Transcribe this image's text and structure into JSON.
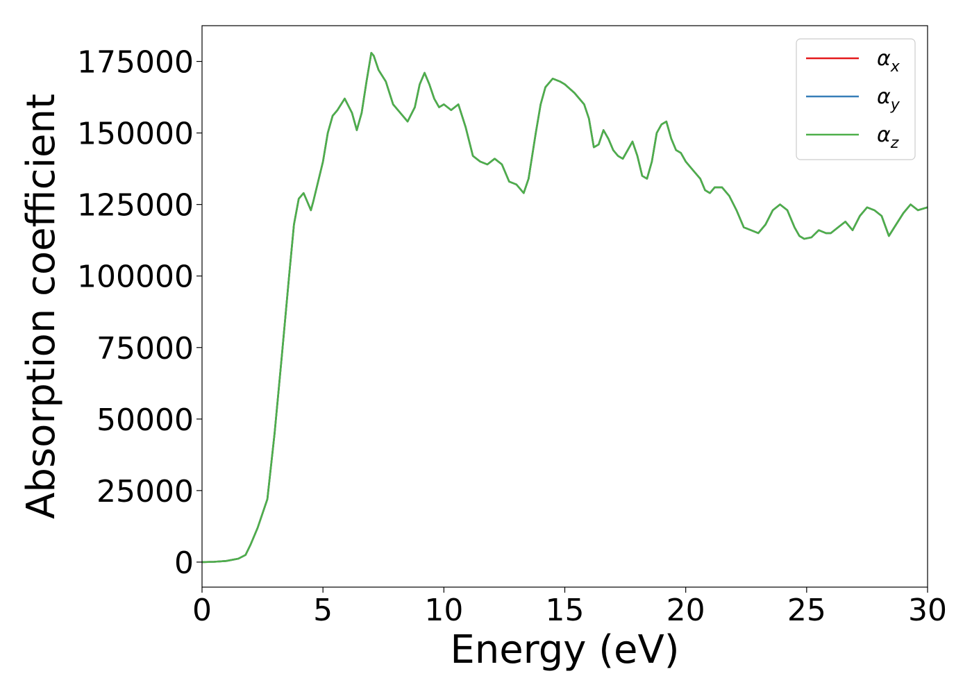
{
  "chart_data": {
    "type": "line",
    "xlabel": "Energy (eV)",
    "ylabel": "Absorption coefficient",
    "xlim": [
      0,
      30
    ],
    "ylim": [
      -8750,
      187500
    ],
    "xticks": [
      0,
      5,
      10,
      15,
      20,
      25,
      30
    ],
    "xtick_labels": [
      "0",
      "5",
      "10",
      "15",
      "20",
      "25",
      "30"
    ],
    "yticks": [
      0,
      25000,
      50000,
      75000,
      100000,
      125000,
      150000,
      175000
    ],
    "ytick_labels": [
      "0",
      "25000",
      "50000",
      "75000",
      "100000",
      "125000",
      "150000",
      "175000"
    ],
    "grid": false,
    "legend_position": "top-right",
    "x": [
      0,
      0.5,
      1.0,
      1.5,
      1.8,
      2.0,
      2.3,
      2.7,
      3.0,
      3.3,
      3.6,
      3.8,
      4.0,
      4.2,
      4.3,
      4.5,
      4.6,
      4.8,
      5.0,
      5.2,
      5.4,
      5.6,
      5.9,
      6.2,
      6.4,
      6.6,
      6.8,
      7.0,
      7.1,
      7.3,
      7.6,
      7.9,
      8.2,
      8.5,
      8.8,
      9.0,
      9.2,
      9.4,
      9.6,
      9.8,
      10.0,
      10.3,
      10.6,
      10.9,
      11.2,
      11.5,
      11.8,
      12.1,
      12.4,
      12.7,
      13.0,
      13.3,
      13.5,
      13.8,
      14.0,
      14.2,
      14.5,
      14.8,
      15.0,
      15.4,
      15.8,
      16.0,
      16.2,
      16.4,
      16.6,
      16.8,
      17.0,
      17.2,
      17.4,
      17.6,
      17.8,
      18.0,
      18.2,
      18.4,
      18.6,
      18.8,
      19.0,
      19.2,
      19.4,
      19.6,
      19.8,
      20.0,
      20.2,
      20.4,
      20.6,
      20.8,
      21.0,
      21.2,
      21.5,
      21.8,
      22.1,
      22.4,
      22.7,
      23.0,
      23.3,
      23.6,
      23.9,
      24.2,
      24.5,
      24.7,
      24.9,
      25.2,
      25.5,
      25.8,
      26.0,
      26.3,
      26.6,
      26.9,
      27.2,
      27.5,
      27.8,
      28.1,
      28.4,
      28.7,
      29.0,
      29.3,
      29.6,
      30.0
    ],
    "series": [
      {
        "name": "α_x",
        "color": "#e41a1c",
        "y": [
          0,
          100,
          400,
          1200,
          2500,
          6000,
          12000,
          22000,
          45000,
          72000,
          100000,
          118000,
          127000,
          129000,
          127000,
          123000,
          126000,
          133000,
          140000,
          150000,
          156000,
          158000,
          162000,
          157000,
          151000,
          157000,
          168000,
          178000,
          177000,
          172000,
          168000,
          160000,
          157000,
          154000,
          159000,
          167000,
          171000,
          167000,
          162000,
          159000,
          160000,
          158000,
          160000,
          152000,
          142000,
          140000,
          139000,
          141000,
          139000,
          133000,
          132000,
          129000,
          134000,
          150000,
          160000,
          166000,
          169000,
          168000,
          167000,
          164000,
          160000,
          155000,
          145000,
          146000,
          151000,
          148000,
          144000,
          142000,
          141000,
          144000,
          147000,
          142000,
          135000,
          134000,
          140000,
          150000,
          153000,
          154000,
          148000,
          144000,
          143000,
          140000,
          138000,
          136000,
          134000,
          130000,
          129000,
          131000,
          131000,
          128000,
          123000,
          117000,
          116000,
          115000,
          118000,
          123000,
          125000,
          123000,
          117000,
          114000,
          113000,
          113500,
          116000,
          115000,
          115000,
          117000,
          119000,
          116000,
          121000,
          124000,
          123000,
          121000,
          114000,
          118000,
          122000,
          125000,
          123000,
          124000
        ]
      },
      {
        "name": "α_y",
        "color": "#377eb8",
        "y": [
          0,
          100,
          400,
          1200,
          2500,
          6000,
          12000,
          22000,
          45000,
          72000,
          100000,
          118000,
          127000,
          129000,
          127000,
          123000,
          126000,
          133000,
          140000,
          150000,
          156000,
          158000,
          162000,
          157000,
          151000,
          157000,
          168000,
          178000,
          177000,
          172000,
          168000,
          160000,
          157000,
          154000,
          159000,
          167000,
          171000,
          167000,
          162000,
          159000,
          160000,
          158000,
          160000,
          152000,
          142000,
          140000,
          139000,
          141000,
          139000,
          133000,
          132000,
          129000,
          134000,
          150000,
          160000,
          166000,
          169000,
          168000,
          167000,
          164000,
          160000,
          155000,
          145000,
          146000,
          151000,
          148000,
          144000,
          142000,
          141000,
          144000,
          147000,
          142000,
          135000,
          134000,
          140000,
          150000,
          153000,
          154000,
          148000,
          144000,
          143000,
          140000,
          138000,
          136000,
          134000,
          130000,
          129000,
          131000,
          131000,
          128000,
          123000,
          117000,
          116000,
          115000,
          118000,
          123000,
          125000,
          123000,
          117000,
          114000,
          113000,
          113500,
          116000,
          115000,
          115000,
          117000,
          119000,
          116000,
          121000,
          124000,
          123000,
          121000,
          114000,
          118000,
          122000,
          125000,
          123000,
          124000
        ]
      },
      {
        "name": "α_z",
        "color": "#4daf4a",
        "y": [
          0,
          100,
          400,
          1200,
          2500,
          6000,
          12000,
          22000,
          45000,
          72000,
          100000,
          118000,
          127000,
          129000,
          127000,
          123000,
          126000,
          133000,
          140000,
          150000,
          156000,
          158000,
          162000,
          157000,
          151000,
          157000,
          168000,
          178000,
          177000,
          172000,
          168000,
          160000,
          157000,
          154000,
          159000,
          167000,
          171000,
          167000,
          162000,
          159000,
          160000,
          158000,
          160000,
          152000,
          142000,
          140000,
          139000,
          141000,
          139000,
          133000,
          132000,
          129000,
          134000,
          150000,
          160000,
          166000,
          169000,
          168000,
          167000,
          164000,
          160000,
          155000,
          145000,
          146000,
          151000,
          148000,
          144000,
          142000,
          141000,
          144000,
          147000,
          142000,
          135000,
          134000,
          140000,
          150000,
          153000,
          154000,
          148000,
          144000,
          143000,
          140000,
          138000,
          136000,
          134000,
          130000,
          129000,
          131000,
          131000,
          128000,
          123000,
          117000,
          116000,
          115000,
          118000,
          123000,
          125000,
          123000,
          117000,
          114000,
          113000,
          113500,
          116000,
          115000,
          115000,
          117000,
          119000,
          116000,
          121000,
          124000,
          123000,
          121000,
          114000,
          118000,
          122000,
          125000,
          123000,
          124000
        ]
      }
    ]
  }
}
